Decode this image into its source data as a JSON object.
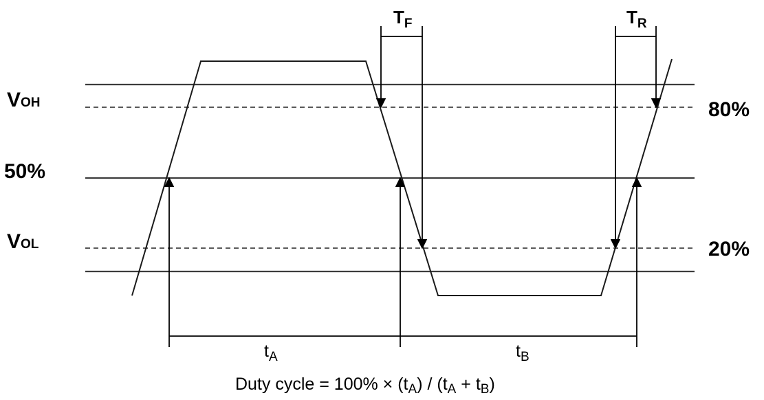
{
  "levels": {
    "voh": {
      "main": "V",
      "sub": "OH"
    },
    "vol": {
      "main": "V",
      "sub": "OL"
    },
    "mid_left": "50%",
    "high_right": "80%",
    "low_right": "20%"
  },
  "timing": {
    "fall": {
      "main": "T",
      "sub": "F"
    },
    "rise": {
      "main": "T",
      "sub": "R"
    },
    "ta": {
      "main": "t",
      "sub": "A"
    },
    "tb": {
      "main": "t",
      "sub": "B"
    }
  },
  "formula": {
    "p1": "Duty cycle = 100% × (t",
    "s1": "A",
    "p2": ") / (t",
    "s2": "A",
    "p3": " + t",
    "s3": "B",
    "p4": ")"
  }
}
